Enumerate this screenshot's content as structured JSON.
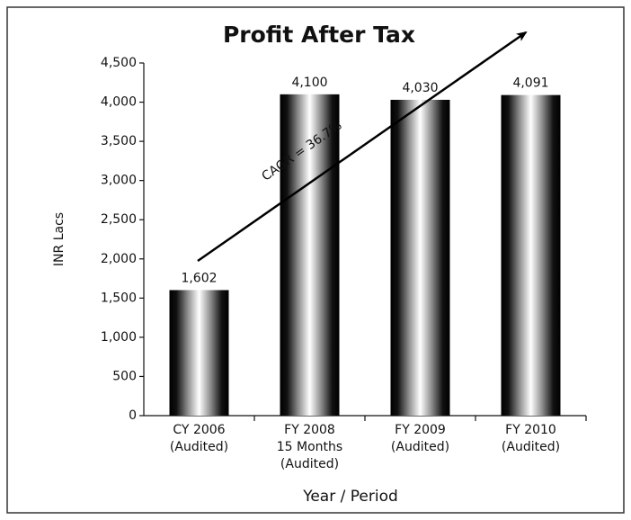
{
  "chart_data": {
    "type": "bar",
    "title": "Profit After Tax",
    "categories": [
      "CY 2006\n(Audited)",
      "FY 2008\n15 Months\n(Audited)",
      "FY 2009\n(Audited)",
      "FY 2010\n(Audited)"
    ],
    "values": [
      1602,
      4100,
      4030,
      4091
    ],
    "value_labels": [
      "1,602",
      "4,100",
      "4,030",
      "4,091"
    ],
    "ylim": [
      0,
      4500
    ],
    "yticks": [
      0,
      500,
      {
        "value": 1000,
        "label": "1,000"
      },
      {
        "value": 1500,
        "label": "1,500"
      },
      {
        "value": 2000,
        "label": "2,000"
      },
      {
        "value": 2500,
        "label": "2,500"
      },
      {
        "value": 3000,
        "label": "3,000"
      },
      {
        "value": 3500,
        "label": "3,500"
      },
      {
        "value": 4000,
        "label": "4,000"
      },
      {
        "value": 4500,
        "label": "4,500"
      }
    ],
    "y_label": "INR Lacs",
    "x_label": "Year / Period",
    "annotation": "CAGR = 36.7%"
  }
}
